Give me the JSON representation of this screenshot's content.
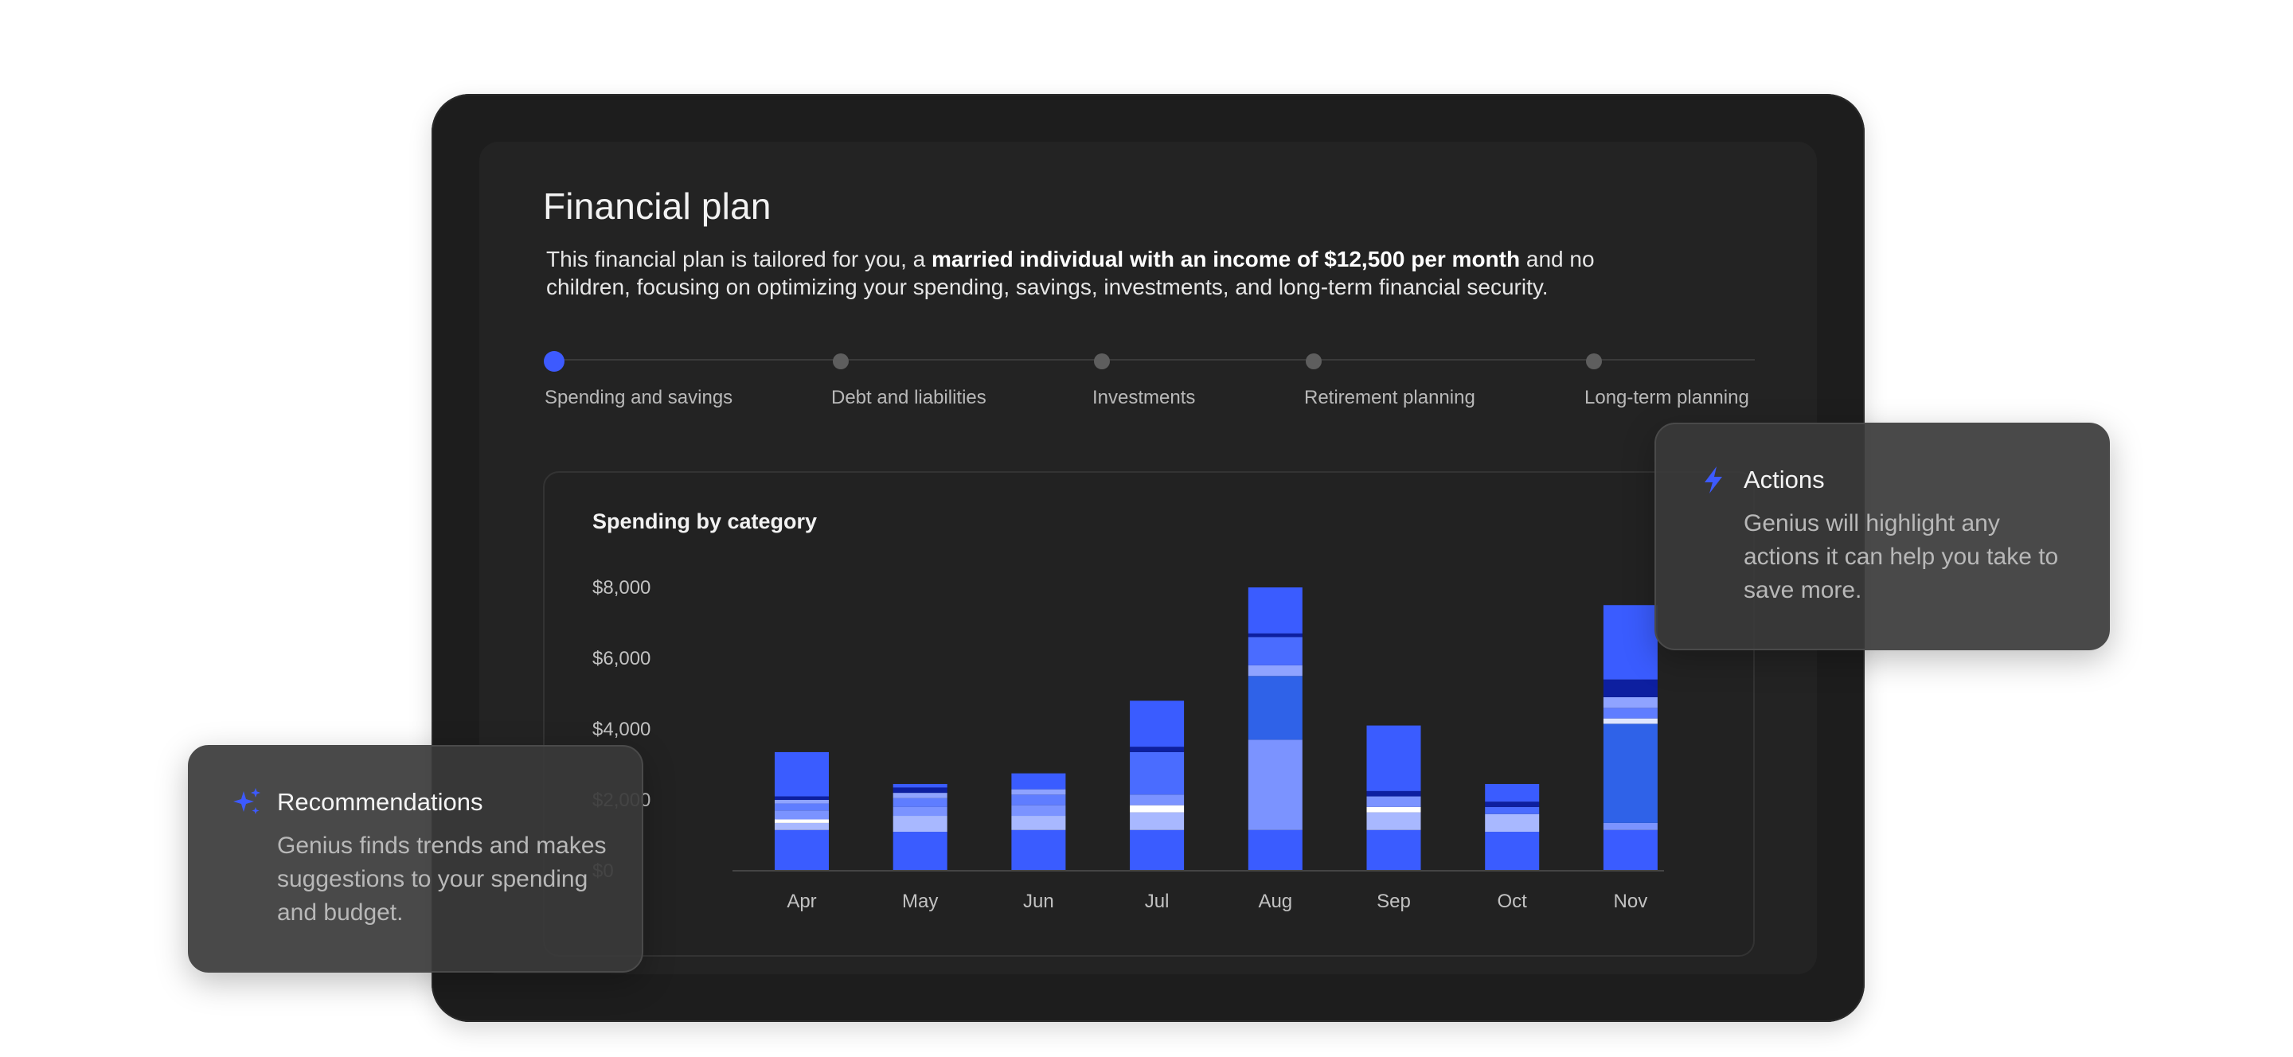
{
  "plan": {
    "title": "Financial plan",
    "desc_pre": "This financial plan is tailored for you, a ",
    "desc_bold": "married individual with an income of $12,500 per month",
    "desc_post": " and no children, focusing on optimizing your spending, savings, investments, and long-term financial security."
  },
  "stepper": {
    "steps": [
      {
        "label": "Spending and savings",
        "active": true
      },
      {
        "label": "Debt and liabilities",
        "active": false
      },
      {
        "label": "Investments",
        "active": false
      },
      {
        "label": "Retirement planning",
        "active": false
      },
      {
        "label": "Long-term planning",
        "active": false
      }
    ]
  },
  "chart_data": {
    "type": "bar",
    "stacked": true,
    "title": "Spending by category",
    "xlabel": "",
    "ylabel": "",
    "ylim": [
      0,
      8000
    ],
    "yticks": [
      "$0",
      "$2,000",
      "$4,000",
      "$6,000",
      "$8,000"
    ],
    "ytick_values": [
      0,
      2000,
      4000,
      6000,
      8000
    ],
    "grid": false,
    "legend": "none",
    "categories": [
      "Apr",
      "May",
      "Jun",
      "Jul",
      "Aug",
      "Sep",
      "Oct",
      "Nov"
    ],
    "series": [
      {
        "color": "#3a5cff",
        "values": [
          1150,
          1100,
          1150,
          1150,
          1150,
          1150,
          1100,
          1150
        ]
      },
      {
        "color": "#a8b8ff",
        "values": [
          200,
          450,
          400,
          500,
          0,
          500,
          500,
          0
        ]
      },
      {
        "color": "#ffffff",
        "values": [
          100,
          0,
          0,
          200,
          0,
          150,
          0,
          0
        ]
      },
      {
        "color": "#7b93ff",
        "values": [
          250,
          250,
          300,
          300,
          2550,
          300,
          0,
          200
        ]
      },
      {
        "color": "#2f62e8",
        "values": [
          0,
          0,
          0,
          0,
          1800,
          0,
          0,
          2800
        ]
      },
      {
        "color": "#dfe6ff",
        "values": [
          0,
          0,
          0,
          0,
          0,
          0,
          0,
          150
        ]
      },
      {
        "color": "#5f7dff",
        "values": [
          200,
          250,
          300,
          0,
          0,
          0,
          0,
          300
        ]
      },
      {
        "color": "#8fa3ff",
        "values": [
          100,
          150,
          150,
          0,
          300,
          0,
          0,
          300
        ]
      },
      {
        "color": "#4a6cff",
        "values": [
          0,
          0,
          0,
          1200,
          800,
          0,
          200,
          0
        ]
      },
      {
        "color": "#0d1fa0",
        "values": [
          100,
          150,
          0,
          150,
          100,
          150,
          150,
          500
        ]
      },
      {
        "color": "#3a5cff",
        "values": [
          1250,
          100,
          450,
          1300,
          1300,
          1850,
          500,
          2100
        ]
      }
    ]
  },
  "actions": {
    "title": "Actions",
    "body": "Genius will highlight any actions it can help you take to save more.",
    "icon": "lightning-icon"
  },
  "recommendations": {
    "title": "Recommendations",
    "body": "Genius finds trends and makes suggestions to your spending and budget.",
    "icon": "sparkles-icon"
  },
  "colors": {
    "accent": "#3d5afe",
    "device": "#1d1d1d",
    "screen": "#232323"
  }
}
